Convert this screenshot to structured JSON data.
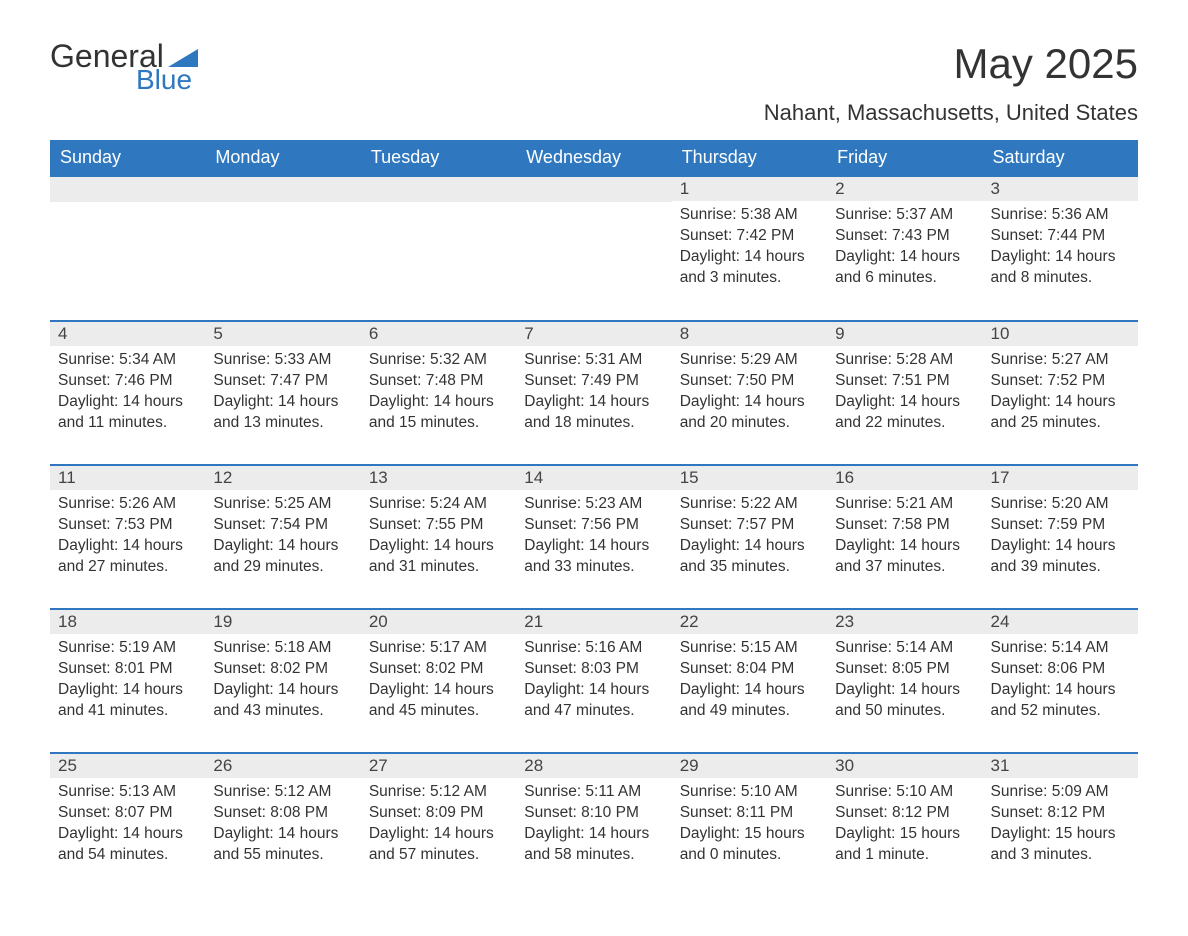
{
  "logo": {
    "text_general": "General",
    "text_blue": "Blue",
    "shape_color": "#2f78bf"
  },
  "title": "May 2025",
  "location": "Nahant, Massachusetts, United States",
  "colors": {
    "header_bg": "#2f78bf",
    "header_text": "#ffffff",
    "daynum_bg": "#ececec",
    "row_divider": "#2f78bf",
    "body_text": "#333333",
    "page_bg": "#ffffff"
  },
  "daynames": [
    "Sunday",
    "Monday",
    "Tuesday",
    "Wednesday",
    "Thursday",
    "Friday",
    "Saturday"
  ],
  "weeks": [
    [
      {
        "blank": true
      },
      {
        "blank": true
      },
      {
        "blank": true
      },
      {
        "blank": true
      },
      {
        "day": "1",
        "sunrise": "Sunrise: 5:38 AM",
        "sunset": "Sunset: 7:42 PM",
        "daylight": "Daylight: 14 hours and 3 minutes."
      },
      {
        "day": "2",
        "sunrise": "Sunrise: 5:37 AM",
        "sunset": "Sunset: 7:43 PM",
        "daylight": "Daylight: 14 hours and 6 minutes."
      },
      {
        "day": "3",
        "sunrise": "Sunrise: 5:36 AM",
        "sunset": "Sunset: 7:44 PM",
        "daylight": "Daylight: 14 hours and 8 minutes."
      }
    ],
    [
      {
        "day": "4",
        "sunrise": "Sunrise: 5:34 AM",
        "sunset": "Sunset: 7:46 PM",
        "daylight": "Daylight: 14 hours and 11 minutes."
      },
      {
        "day": "5",
        "sunrise": "Sunrise: 5:33 AM",
        "sunset": "Sunset: 7:47 PM",
        "daylight": "Daylight: 14 hours and 13 minutes."
      },
      {
        "day": "6",
        "sunrise": "Sunrise: 5:32 AM",
        "sunset": "Sunset: 7:48 PM",
        "daylight": "Daylight: 14 hours and 15 minutes."
      },
      {
        "day": "7",
        "sunrise": "Sunrise: 5:31 AM",
        "sunset": "Sunset: 7:49 PM",
        "daylight": "Daylight: 14 hours and 18 minutes."
      },
      {
        "day": "8",
        "sunrise": "Sunrise: 5:29 AM",
        "sunset": "Sunset: 7:50 PM",
        "daylight": "Daylight: 14 hours and 20 minutes."
      },
      {
        "day": "9",
        "sunrise": "Sunrise: 5:28 AM",
        "sunset": "Sunset: 7:51 PM",
        "daylight": "Daylight: 14 hours and 22 minutes."
      },
      {
        "day": "10",
        "sunrise": "Sunrise: 5:27 AM",
        "sunset": "Sunset: 7:52 PM",
        "daylight": "Daylight: 14 hours and 25 minutes."
      }
    ],
    [
      {
        "day": "11",
        "sunrise": "Sunrise: 5:26 AM",
        "sunset": "Sunset: 7:53 PM",
        "daylight": "Daylight: 14 hours and 27 minutes."
      },
      {
        "day": "12",
        "sunrise": "Sunrise: 5:25 AM",
        "sunset": "Sunset: 7:54 PM",
        "daylight": "Daylight: 14 hours and 29 minutes."
      },
      {
        "day": "13",
        "sunrise": "Sunrise: 5:24 AM",
        "sunset": "Sunset: 7:55 PM",
        "daylight": "Daylight: 14 hours and 31 minutes."
      },
      {
        "day": "14",
        "sunrise": "Sunrise: 5:23 AM",
        "sunset": "Sunset: 7:56 PM",
        "daylight": "Daylight: 14 hours and 33 minutes."
      },
      {
        "day": "15",
        "sunrise": "Sunrise: 5:22 AM",
        "sunset": "Sunset: 7:57 PM",
        "daylight": "Daylight: 14 hours and 35 minutes."
      },
      {
        "day": "16",
        "sunrise": "Sunrise: 5:21 AM",
        "sunset": "Sunset: 7:58 PM",
        "daylight": "Daylight: 14 hours and 37 minutes."
      },
      {
        "day": "17",
        "sunrise": "Sunrise: 5:20 AM",
        "sunset": "Sunset: 7:59 PM",
        "daylight": "Daylight: 14 hours and 39 minutes."
      }
    ],
    [
      {
        "day": "18",
        "sunrise": "Sunrise: 5:19 AM",
        "sunset": "Sunset: 8:01 PM",
        "daylight": "Daylight: 14 hours and 41 minutes."
      },
      {
        "day": "19",
        "sunrise": "Sunrise: 5:18 AM",
        "sunset": "Sunset: 8:02 PM",
        "daylight": "Daylight: 14 hours and 43 minutes."
      },
      {
        "day": "20",
        "sunrise": "Sunrise: 5:17 AM",
        "sunset": "Sunset: 8:02 PM",
        "daylight": "Daylight: 14 hours and 45 minutes."
      },
      {
        "day": "21",
        "sunrise": "Sunrise: 5:16 AM",
        "sunset": "Sunset: 8:03 PM",
        "daylight": "Daylight: 14 hours and 47 minutes."
      },
      {
        "day": "22",
        "sunrise": "Sunrise: 5:15 AM",
        "sunset": "Sunset: 8:04 PM",
        "daylight": "Daylight: 14 hours and 49 minutes."
      },
      {
        "day": "23",
        "sunrise": "Sunrise: 5:14 AM",
        "sunset": "Sunset: 8:05 PM",
        "daylight": "Daylight: 14 hours and 50 minutes."
      },
      {
        "day": "24",
        "sunrise": "Sunrise: 5:14 AM",
        "sunset": "Sunset: 8:06 PM",
        "daylight": "Daylight: 14 hours and 52 minutes."
      }
    ],
    [
      {
        "day": "25",
        "sunrise": "Sunrise: 5:13 AM",
        "sunset": "Sunset: 8:07 PM",
        "daylight": "Daylight: 14 hours and 54 minutes."
      },
      {
        "day": "26",
        "sunrise": "Sunrise: 5:12 AM",
        "sunset": "Sunset: 8:08 PM",
        "daylight": "Daylight: 14 hours and 55 minutes."
      },
      {
        "day": "27",
        "sunrise": "Sunrise: 5:12 AM",
        "sunset": "Sunset: 8:09 PM",
        "daylight": "Daylight: 14 hours and 57 minutes."
      },
      {
        "day": "28",
        "sunrise": "Sunrise: 5:11 AM",
        "sunset": "Sunset: 8:10 PM",
        "daylight": "Daylight: 14 hours and 58 minutes."
      },
      {
        "day": "29",
        "sunrise": "Sunrise: 5:10 AM",
        "sunset": "Sunset: 8:11 PM",
        "daylight": "Daylight: 15 hours and 0 minutes."
      },
      {
        "day": "30",
        "sunrise": "Sunrise: 5:10 AM",
        "sunset": "Sunset: 8:12 PM",
        "daylight": "Daylight: 15 hours and 1 minute."
      },
      {
        "day": "31",
        "sunrise": "Sunrise: 5:09 AM",
        "sunset": "Sunset: 8:12 PM",
        "daylight": "Daylight: 15 hours and 3 minutes."
      }
    ]
  ]
}
